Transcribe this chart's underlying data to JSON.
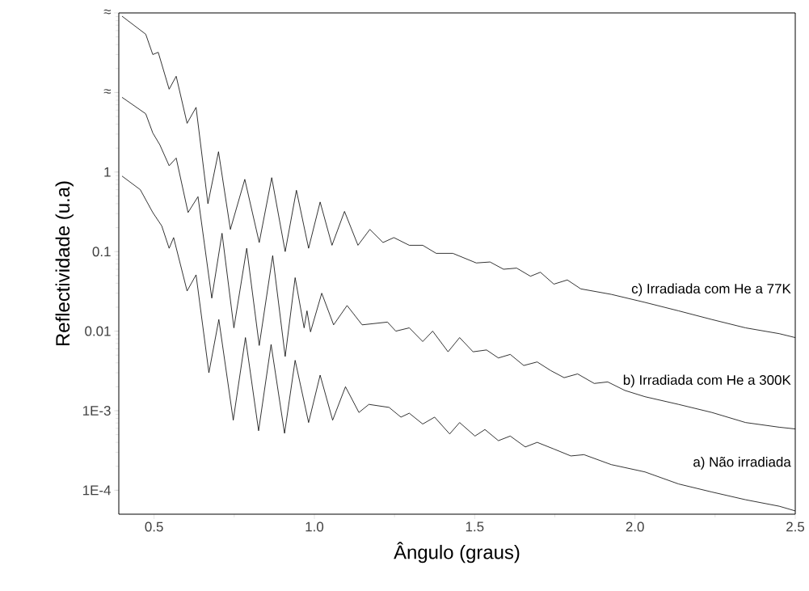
{
  "chart_data": {
    "type": "line",
    "xlabel": "Ângulo (graus)",
    "ylabel": "Reflectividade (u.a)",
    "log": "y",
    "grid": false,
    "legend": false,
    "xlim": [
      0.39,
      2.5
    ],
    "ylim": [
      5e-05,
      100
    ],
    "xticks": [
      0.5,
      {
        "value": 1.0,
        "label": "1.0"
      },
      1.5,
      {
        "value": 2.0,
        "label": "2.0"
      },
      2.5
    ],
    "yticks": [
      {
        "value": 0.0001,
        "label": "1E-4"
      },
      {
        "value": 0.001,
        "label": "1E-3"
      },
      0.01,
      0.1,
      1,
      {
        "value": 10,
        "label": "≈"
      },
      {
        "value": 100,
        "label": "≈"
      }
    ],
    "series": [
      {
        "name": "c) Irradiada com He a 77K",
        "color": "#000000",
        "x": [
          0.4,
          0.474,
          0.496,
          0.513,
          0.547,
          0.569,
          0.603,
          0.631,
          0.668,
          0.701,
          0.738,
          0.783,
          0.828,
          0.867,
          0.909,
          0.944,
          0.982,
          1.018,
          1.055,
          1.094,
          1.136,
          1.173,
          1.214,
          1.248,
          1.296,
          1.338,
          1.38,
          1.432,
          1.505,
          1.548,
          1.59,
          1.631,
          1.674,
          1.705,
          1.747,
          1.789,
          1.831,
          1.926,
          2.031,
          2.136,
          2.24,
          2.345,
          2.45,
          2.5
        ],
        "values": [
          91,
          54,
          30,
          32,
          11,
          16,
          4.1,
          6.5,
          0.4,
          1.8,
          0.19,
          0.81,
          0.13,
          0.85,
          0.1,
          0.59,
          0.11,
          0.42,
          0.12,
          0.32,
          0.12,
          0.19,
          0.13,
          0.15,
          0.12,
          0.12,
          0.095,
          0.095,
          0.072,
          0.074,
          0.06,
          0.062,
          0.049,
          0.055,
          0.039,
          0.044,
          0.034,
          0.029,
          0.023,
          0.018,
          0.014,
          0.011,
          0.0093,
          0.0083
        ]
      },
      {
        "name": "b) Irradiada com He a 300K",
        "color": "#000000",
        "x": [
          0.4,
          0.474,
          0.496,
          0.518,
          0.547,
          0.569,
          0.606,
          0.637,
          0.68,
          0.712,
          0.749,
          0.789,
          0.828,
          0.87,
          0.909,
          0.94,
          0.968,
          0.977,
          0.988,
          1.023,
          1.06,
          1.102,
          1.149,
          1.228,
          1.254,
          1.296,
          1.338,
          1.369,
          1.417,
          1.453,
          1.495,
          1.537,
          1.574,
          1.611,
          1.653,
          1.695,
          1.737,
          1.779,
          1.821,
          1.873,
          1.915,
          1.968,
          2.031,
          2.136,
          2.24,
          2.345,
          2.45,
          2.5
        ],
        "values": [
          8.7,
          5.4,
          3.1,
          2.2,
          1.2,
          1.5,
          0.31,
          0.49,
          0.026,
          0.17,
          0.011,
          0.11,
          0.0066,
          0.089,
          0.0048,
          0.047,
          0.011,
          0.018,
          0.0098,
          0.03,
          0.012,
          0.021,
          0.012,
          0.013,
          0.01,
          0.011,
          0.0074,
          0.01,
          0.0055,
          0.0083,
          0.0055,
          0.0058,
          0.0046,
          0.0051,
          0.0037,
          0.0041,
          0.0032,
          0.0026,
          0.0029,
          0.0022,
          0.0023,
          0.0018,
          0.0015,
          0.0012,
          0.00095,
          0.00071,
          0.00062,
          0.00059
        ]
      },
      {
        "name": "a) Não irradiada",
        "color": "#000000",
        "x": [
          0.4,
          0.457,
          0.496,
          0.524,
          0.547,
          0.561,
          0.603,
          0.631,
          0.671,
          0.702,
          0.747,
          0.785,
          0.826,
          0.865,
          0.907,
          0.94,
          0.982,
          1.018,
          1.057,
          1.097,
          1.139,
          1.17,
          1.233,
          1.27,
          1.296,
          1.338,
          1.375,
          1.422,
          1.453,
          1.501,
          1.532,
          1.574,
          1.611,
          1.658,
          1.695,
          1.747,
          1.8,
          1.841,
          1.926,
          2.031,
          2.136,
          2.24,
          2.345,
          2.45,
          2.5
        ],
        "values": [
          0.89,
          0.6,
          0.31,
          0.21,
          0.11,
          0.15,
          0.032,
          0.051,
          0.003,
          0.014,
          0.00076,
          0.0083,
          0.00056,
          0.0068,
          0.00052,
          0.0043,
          0.00071,
          0.0028,
          0.00076,
          0.002,
          0.00095,
          0.0012,
          0.0011,
          0.00083,
          0.00093,
          0.00068,
          0.00083,
          0.00051,
          0.00071,
          0.00048,
          0.00058,
          0.00042,
          0.00048,
          0.00035,
          0.0004,
          0.00033,
          0.00027,
          0.00028,
          0.00021,
          0.00017,
          0.00012,
          9.5e-05,
          7.6e-05,
          6.3e-05,
          5.5e-05
        ]
      }
    ]
  }
}
